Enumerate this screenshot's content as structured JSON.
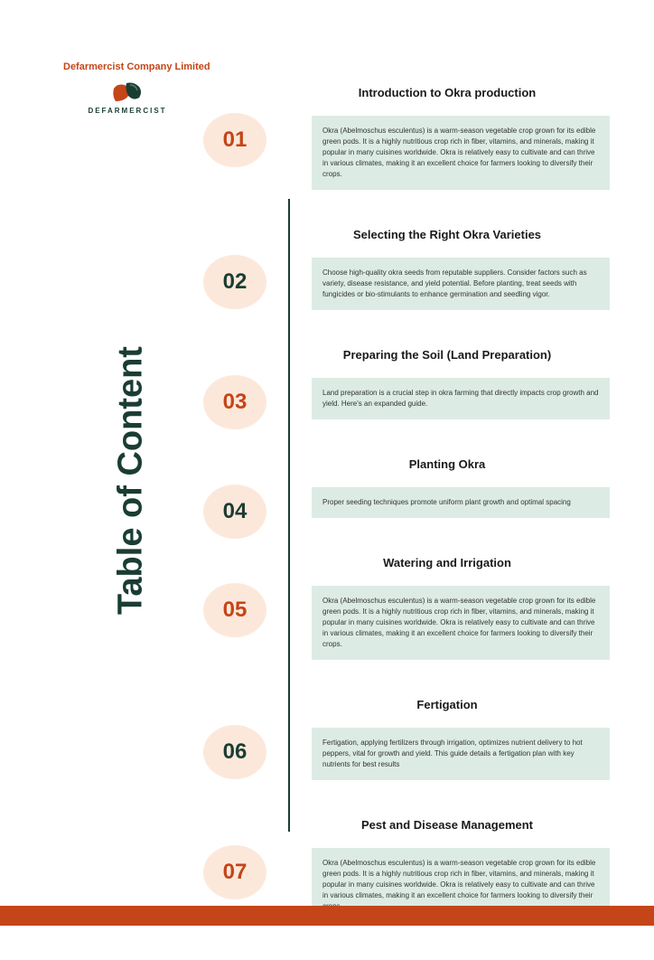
{
  "company": {
    "name": "Defarmercist Company Limited",
    "logoText": "DEFARMERCIST"
  },
  "page": {
    "title": "Table of Content"
  },
  "colors": {
    "brandOrange": "#c44518",
    "brandGreen": "#1a3d33",
    "badgeBg": "#fce8db",
    "descBg": "#dcece4",
    "white": "#ffffff"
  },
  "sections": [
    {
      "number": "01",
      "numberColor": "#c44518",
      "title": "Introduction to Okra production",
      "description": "Okra (Abelmoschus esculentus) is a warm-season vegetable crop grown for its edible green pods. It is a highly nutritious crop rich in fiber, vitamins, and minerals, making it popular in many cuisines worldwide. Okra is relatively easy to cultivate and can thrive in various climates, making it an excellent choice for farmers looking to diversify their crops."
    },
    {
      "number": "02",
      "numberColor": "#1a3d33",
      "title": "Selecting the Right Okra Varieties",
      "description": "Choose high-quality okra seeds from reputable suppliers.  Consider factors such as variety, disease resistance, and yield potential. Before planting, treat seeds with fungicides or bio-stimulants to enhance germination and seedling vigor."
    },
    {
      "number": "03",
      "numberColor": "#c44518",
      "title": "Preparing the Soil (Land Preparation)",
      "description": "Land preparation is a crucial step in okra farming that directly impacts crop growth and yield. Here's an expanded guide."
    },
    {
      "number": "04",
      "numberColor": "#1a3d33",
      "title": "Planting Okra",
      "description": "Proper seeding techniques promote uniform plant growth and optimal spacing"
    },
    {
      "number": "05",
      "numberColor": "#c44518",
      "title": "Watering and Irrigation",
      "description": "Okra (Abelmoschus esculentus) is a warm-season vegetable crop grown for its edible green pods. It is a highly nutritious crop rich in fiber, vitamins, and minerals, making it popular in many cuisines worldwide. Okra is relatively easy to cultivate and can thrive in various climates, making it an excellent choice for farmers looking to diversify their crops."
    },
    {
      "number": "06",
      "numberColor": "#1a3d33",
      "title": "Fertigation",
      "description": "Fertigation, applying fertilizers through irrigation, optimizes nutrient delivery to hot peppers, vital for growth and yield. This guide details a fertigation plan with key nutrients for best results"
    },
    {
      "number": "07",
      "numberColor": "#c44518",
      "title": "Pest and Disease Management",
      "description": "Okra (Abelmoschus esculentus) is a warm-season vegetable crop grown for its edible green pods. It is a highly nutritious crop rich in fiber, vitamins, and minerals, making it popular in many cuisines worldwide. Okra is relatively easy to cultivate and can thrive in various climates, making it an excellent choice for farmers looking to diversify their crops."
    }
  ]
}
